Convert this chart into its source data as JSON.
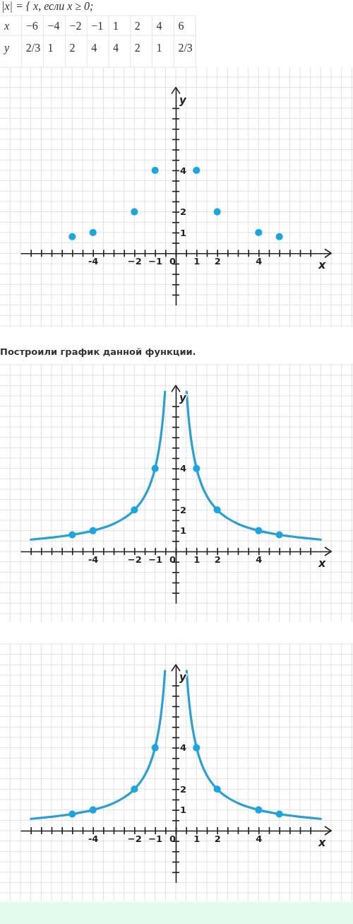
{
  "chart_data": [
    {
      "type": "other",
      "title": "|x| = { x, если x ≥ 0;",
      "xlabel": "x",
      "ylabel": "y",
      "categories": [
        "−6",
        "−4",
        "−2",
        "−1",
        "1",
        "2",
        "4",
        "6"
      ],
      "annotations": [
        "2/3",
        "1",
        "2",
        "4",
        "4",
        "2",
        "1",
        "2/3"
      ]
    },
    {
      "type": "scatter",
      "xlabel": "x",
      "ylabel": "y",
      "x": [
        -5,
        -4,
        -2,
        -1,
        1,
        2,
        4,
        5
      ],
      "values": [
        0.8,
        1,
        2,
        4,
        4,
        2,
        1,
        0.8
      ],
      "color": "#1ba6e2",
      "marker": "circle",
      "grid": true,
      "xlim": [
        -7.5,
        7.5
      ],
      "ylim": [
        -2.5,
        8
      ],
      "xticks": [
        {
          "value": -7,
          "label": null
        },
        {
          "value": -6.5,
          "label": null
        },
        {
          "value": -6,
          "label": null
        },
        {
          "value": -5.5,
          "label": null
        },
        {
          "value": -5,
          "label": null
        },
        {
          "value": -4.5,
          "label": null
        },
        {
          "value": -4,
          "label": "-4"
        },
        {
          "value": -3.5,
          "label": null
        },
        {
          "value": -3,
          "label": null
        },
        {
          "value": -2.5,
          "label": null
        },
        {
          "value": -2,
          "label": "−2"
        },
        {
          "value": -1.5,
          "label": null
        },
        {
          "value": -1,
          "label": "−1"
        },
        {
          "value": -0.5,
          "label": null
        },
        0,
        {
          "value": 0.5,
          "label": null
        },
        1,
        {
          "value": 1.5,
          "label": null
        },
        2,
        {
          "value": 2.5,
          "label": null
        },
        {
          "value": 3,
          "label": null
        },
        {
          "value": 3.5,
          "label": null
        },
        4,
        {
          "value": 4.5,
          "label": null
        },
        {
          "value": 5,
          "label": null
        },
        {
          "value": 5.5,
          "label": null
        },
        {
          "value": 6,
          "label": null
        },
        {
          "value": 6.5,
          "label": null
        }
      ],
      "yticks": [
        {
          "value": -2,
          "label": null
        },
        {
          "value": -1.5,
          "label": null
        },
        {
          "value": -1,
          "label": null
        },
        {
          "value": -0.5,
          "label": null
        },
        {
          "value": 0.5,
          "label": null
        },
        1,
        {
          "value": 1.5,
          "label": null
        },
        2,
        {
          "value": 2.5,
          "label": null
        },
        {
          "value": 3,
          "label": null
        },
        {
          "value": 3.5,
          "label": null
        },
        4,
        {
          "value": 4.5,
          "label": null
        },
        {
          "value": 5,
          "label": null
        },
        {
          "value": 5.5,
          "label": null
        },
        {
          "value": 6,
          "label": null
        },
        {
          "value": 6.5,
          "label": null
        },
        {
          "value": 7,
          "label": null
        }
      ]
    },
    {
      "type": "line",
      "title": "Построили график данной функции.",
      "xlabel": "x",
      "ylabel": "y",
      "grid": true,
      "xlim": [
        -7.5,
        7.5
      ],
      "ylim": [
        -2.5,
        8
      ],
      "series": [
        {
          "color": "#2a9fd8",
          "x": [
            -7,
            -6,
            -5,
            -4,
            -3,
            -2.5,
            -2,
            -1.5,
            -1.25,
            -1,
            -0.8,
            -0.7,
            -0.6,
            -0.52,
            0,
            0.52,
            0.6,
            0.7,
            0.8,
            1,
            1.25,
            1.5,
            2,
            2.5,
            3,
            4,
            5,
            6,
            7
          ],
          "values": [
            0.57,
            0.67,
            0.8,
            1,
            1.33,
            1.6,
            2,
            2.67,
            3.2,
            4,
            5,
            5.71,
            6.67,
            7.7,
            null,
            7.7,
            6.67,
            5.71,
            5,
            4,
            3.2,
            2.67,
            2,
            1.6,
            1.33,
            1,
            0.8,
            0.67,
            0.57
          ]
        },
        {
          "type": "scatter",
          "marker": "circle",
          "color": "#1ba6e2",
          "x": [
            -5,
            -4,
            -2,
            -1,
            1,
            2,
            4,
            5
          ],
          "values": [
            0.8,
            1,
            2,
            4,
            4,
            2,
            1,
            0.8
          ]
        }
      ],
      "xticks": [
        {
          "value": -7,
          "label": null
        },
        {
          "value": -6.5,
          "label": null
        },
        {
          "value": -6,
          "label": null
        },
        {
          "value": -5.5,
          "label": null
        },
        {
          "value": -5,
          "label": null
        },
        {
          "value": -4.5,
          "label": null
        },
        {
          "value": -4,
          "label": "-4"
        },
        {
          "value": -3.5,
          "label": null
        },
        {
          "value": -3,
          "label": null
        },
        {
          "value": -2.5,
          "label": null
        },
        {
          "value": -2,
          "label": "−2"
        },
        {
          "value": -1.5,
          "label": null
        },
        {
          "value": -1,
          "label": "−1"
        },
        {
          "value": -0.5,
          "label": null
        },
        0,
        {
          "value": 0.5,
          "label": null
        },
        1,
        {
          "value": 1.5,
          "label": null
        },
        2,
        {
          "value": 2.5,
          "label": null
        },
        {
          "value": 3,
          "label": null
        },
        {
          "value": 3.5,
          "label": null
        },
        4,
        {
          "value": 4.5,
          "label": null
        },
        {
          "value": 5,
          "label": null
        },
        {
          "value": 5.5,
          "label": null
        },
        {
          "value": 6,
          "label": null
        },
        {
          "value": 6.5,
          "label": null
        }
      ],
      "yticks": [
        {
          "value": -2,
          "label": null
        },
        {
          "value": -1.5,
          "label": null
        },
        {
          "value": -1,
          "label": null
        },
        {
          "value": -0.5,
          "label": null
        },
        {
          "value": 0.5,
          "label": null
        },
        1,
        {
          "value": 1.5,
          "label": null
        },
        2,
        {
          "value": 2.5,
          "label": null
        },
        {
          "value": 3,
          "label": null
        },
        {
          "value": 3.5,
          "label": null
        },
        4,
        {
          "value": 4.5,
          "label": null
        },
        {
          "value": 5,
          "label": null
        },
        {
          "value": 5.5,
          "label": null
        },
        {
          "value": 6,
          "label": null
        },
        {
          "value": 6.5,
          "label": null
        },
        {
          "value": 7,
          "label": null
        }
      ]
    },
    {
      "type": "line",
      "xlabel": "x",
      "ylabel": "y",
      "grid": true,
      "xlim": [
        -7.5,
        7.5
      ],
      "ylim": [
        -2.5,
        8
      ],
      "series": [
        {
          "color": "#2a9fd8",
          "x": [
            -7,
            -6,
            -5,
            -4,
            -3,
            -2.5,
            -2,
            -1.5,
            -1.25,
            -1,
            -0.8,
            -0.7,
            -0.6,
            -0.52,
            0,
            0.52,
            0.6,
            0.7,
            0.8,
            1,
            1.25,
            1.5,
            2,
            2.5,
            3,
            4,
            5,
            6,
            7
          ],
          "values": [
            0.57,
            0.67,
            0.8,
            1,
            1.33,
            1.6,
            2,
            2.67,
            3.2,
            4,
            5,
            5.71,
            6.67,
            7.7,
            null,
            7.7,
            6.67,
            5.71,
            5,
            4,
            3.2,
            2.67,
            2,
            1.6,
            1.33,
            1,
            0.8,
            0.67,
            0.57
          ]
        },
        {
          "type": "scatter",
          "marker": "circle",
          "color": "#1ba6e2",
          "x": [
            -5,
            -4,
            -2,
            -1,
            1,
            2,
            4,
            5
          ],
          "values": [
            0.8,
            1,
            2,
            4,
            4,
            2,
            1,
            0.8
          ]
        }
      ],
      "xticks": [
        {
          "value": -7,
          "label": null
        },
        {
          "value": -6.5,
          "label": null
        },
        {
          "value": -6,
          "label": null
        },
        {
          "value": -5.5,
          "label": null
        },
        {
          "value": -5,
          "label": null
        },
        {
          "value": -4.5,
          "label": null
        },
        {
          "value": -4,
          "label": "-4"
        },
        {
          "value": -3.5,
          "label": null
        },
        {
          "value": -3,
          "label": null
        },
        {
          "value": -2.5,
          "label": null
        },
        {
          "value": -2,
          "label": "−2"
        },
        {
          "value": -1.5,
          "label": null
        },
        {
          "value": -1,
          "label": "−1"
        },
        {
          "value": -0.5,
          "label": null
        },
        0,
        {
          "value": 0.5,
          "label": null
        },
        1,
        {
          "value": 1.5,
          "label": null
        },
        2,
        {
          "value": 2.5,
          "label": null
        },
        {
          "value": 3,
          "label": null
        },
        {
          "value": 3.5,
          "label": null
        },
        4,
        {
          "value": 4.5,
          "label": null
        },
        {
          "value": 5,
          "label": null
        },
        {
          "value": 5.5,
          "label": null
        },
        {
          "value": 6,
          "label": null
        },
        {
          "value": 6.5,
          "label": null
        }
      ],
      "yticks": [
        {
          "value": -2,
          "label": null
        },
        {
          "value": -1.5,
          "label": null
        },
        {
          "value": -1,
          "label": null
        },
        {
          "value": -0.5,
          "label": null
        },
        {
          "value": 0.5,
          "label": null
        },
        1,
        {
          "value": 1.5,
          "label": null
        },
        2,
        {
          "value": 2.5,
          "label": null
        },
        {
          "value": 3,
          "label": null
        },
        {
          "value": 3.5,
          "label": null
        },
        4,
        {
          "value": 4.5,
          "label": null
        },
        {
          "value": 5,
          "label": null
        },
        {
          "value": 5.5,
          "label": null
        },
        {
          "value": 6,
          "label": null
        },
        {
          "value": 6.5,
          "label": null
        },
        {
          "value": 7,
          "label": null
        }
      ]
    }
  ]
}
